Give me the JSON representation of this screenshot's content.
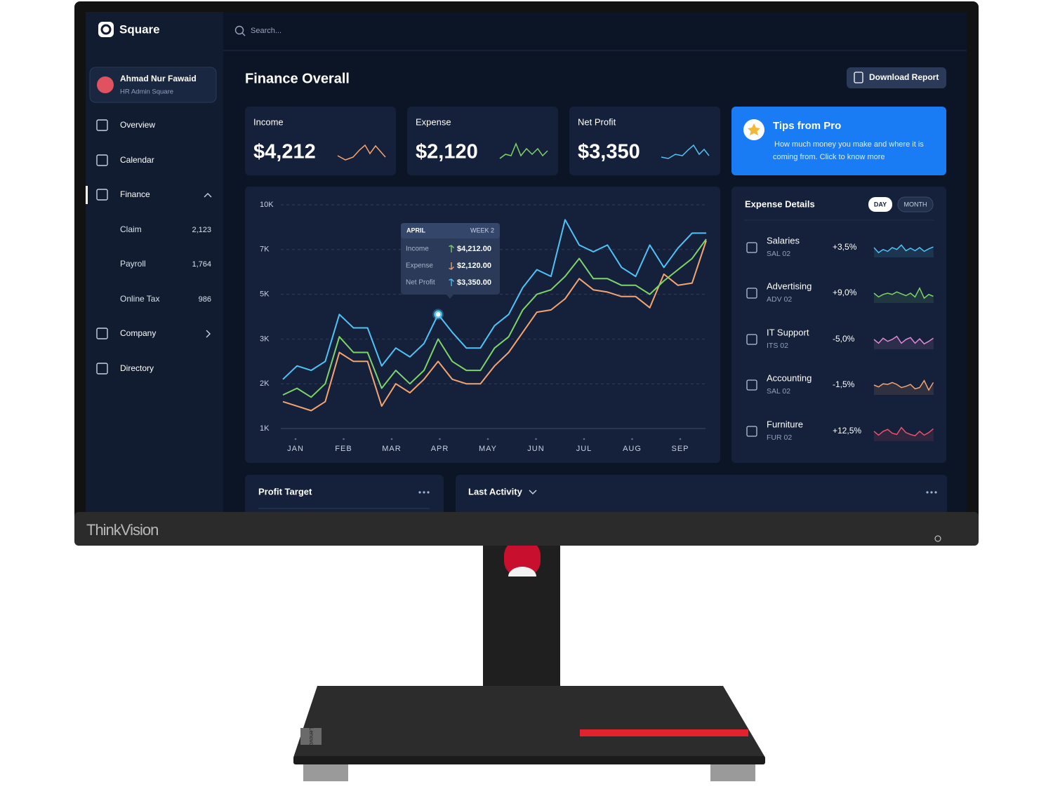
{
  "monitor_brand": "ThinkVision",
  "base_brand": "Lenovo",
  "brand": "Square",
  "search_placeholder": "Search...",
  "user": {
    "name": "Ahmad Nur Fawaid",
    "role": "HR Admin Square"
  },
  "nav": [
    {
      "label": "Overview"
    },
    {
      "label": "Calendar"
    },
    {
      "label": "Finance",
      "children": [
        {
          "label": "Claim",
          "count": "2,123"
        },
        {
          "label": "Payroll",
          "count": "1,764"
        },
        {
          "label": "Online Tax",
          "count": "986"
        }
      ]
    },
    {
      "label": "Company"
    },
    {
      "label": "Directory"
    }
  ],
  "page_title": "Finance Overall",
  "download_button": "Download Report",
  "stats": [
    {
      "label": "Income",
      "value": "$4,212"
    },
    {
      "label": "Expense",
      "value": "$2,120"
    },
    {
      "label": "Net Profit",
      "value": "$3,350"
    }
  ],
  "tips": {
    "title": "Tips from Pro",
    "text_lines": [
      "How much money you make and where it is",
      "coming from. Click to know more"
    ]
  },
  "chart_data": {
    "type": "line",
    "xtick_labels": [
      "JAN",
      "FEB",
      "MAR",
      "APR",
      "MAY",
      "JUN",
      "JUL",
      "AUG",
      "SEP"
    ],
    "ylim": [
      1000,
      10000
    ],
    "yticks": [
      {
        "value": 1000,
        "label": "1K"
      },
      {
        "value": 2000,
        "label": "2K"
      },
      {
        "value": 3000,
        "label": "3K"
      },
      {
        "value": 5000,
        "label": "5K"
      },
      {
        "value": 7000,
        "label": "7K"
      },
      {
        "value": 10000,
        "label": "10K"
      }
    ],
    "grid": true,
    "series": [
      {
        "name": "Income",
        "color": "#4fc3f7",
        "values": [
          2100,
          2400,
          2300,
          2500,
          4100,
          3500,
          3500,
          2400,
          2800,
          2600,
          2900,
          4100,
          3300,
          2800,
          2800,
          3600,
          4100,
          5300,
          6100,
          5800,
          9000,
          7300,
          6900,
          7300,
          6200,
          5800,
          7300,
          6200,
          7100,
          8100,
          8100
        ]
      },
      {
        "name": "Expense",
        "color": "#7ed36b",
        "values": [
          1750,
          1900,
          1700,
          2000,
          3100,
          2700,
          2700,
          1900,
          2300,
          2000,
          2300,
          3000,
          2500,
          2300,
          2300,
          2800,
          3100,
          4300,
          5000,
          5200,
          5800,
          6600,
          5700,
          5700,
          5400,
          5400,
          5000,
          5600,
          6100,
          6600,
          7700
        ]
      },
      {
        "name": "Net Profit",
        "color": "#f4a470",
        "values": [
          1600,
          1500,
          1400,
          1600,
          2700,
          2500,
          2500,
          1500,
          2000,
          1800,
          2100,
          2500,
          2100,
          2000,
          2000,
          2400,
          2700,
          3300,
          4200,
          4300,
          4800,
          5700,
          5200,
          5100,
          4900,
          4900,
          4400,
          5900,
          5400,
          5500,
          7600
        ]
      }
    ]
  },
  "tooltip": {
    "month": "APRIL",
    "week": "WEEK 2",
    "rows": [
      {
        "label": "Income",
        "value": "$4,212.00"
      },
      {
        "label": "Expense",
        "value": "$2,120.00"
      },
      {
        "label": "Net Profit",
        "value": "$3,350.00"
      }
    ]
  },
  "expense_details": {
    "title": "Expense Details",
    "tabs": [
      "DAY",
      "MONTH"
    ],
    "items": [
      {
        "name": "Salaries",
        "code": "SAL 02",
        "change": "+3,5%"
      },
      {
        "name": "Advertising",
        "code": "ADV 02",
        "change": "+9,0%"
      },
      {
        "name": "IT Support",
        "code": "ITS 02",
        "change": "-5,0%"
      },
      {
        "name": "Accounting",
        "code": "SAL 02",
        "change": "-1,5%"
      },
      {
        "name": "Furniture",
        "code": "FUR 02",
        "change": "+12,5%"
      }
    ]
  },
  "profit_target": "Profit Target",
  "last_activity": "Last Activity"
}
